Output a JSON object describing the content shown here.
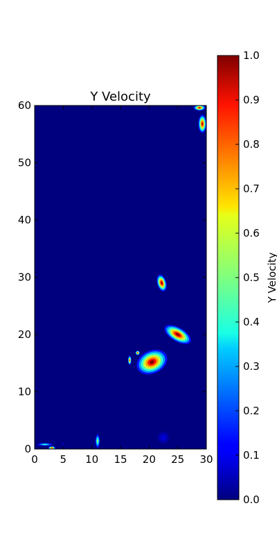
{
  "chart_data": {
    "type": "heatmap",
    "title": "Y Velocity",
    "xlim": [
      0,
      30
    ],
    "ylim": [
      0,
      60
    ],
    "x_ticks": [
      "0",
      "5",
      "10",
      "15",
      "20",
      "25",
      "30"
    ],
    "y_ticks": [
      "0",
      "10",
      "20",
      "30",
      "40",
      "50",
      "60"
    ],
    "colorbar": {
      "label": "Y Velocity",
      "range": [
        0.0,
        1.0
      ],
      "ticks": [
        "0.0",
        "0.1",
        "0.2",
        "0.3",
        "0.4",
        "0.5",
        "0.6",
        "0.7",
        "0.8",
        "0.9",
        "1.0"
      ],
      "colormap": "jet"
    },
    "background_value": 0.0,
    "features": [
      {
        "x": 22.2,
        "y": 29.0,
        "rx": 0.8,
        "ry": 1.5,
        "angle": -15,
        "peak": 1.0
      },
      {
        "x": 25.0,
        "y": 20.0,
        "rx": 2.6,
        "ry": 1.2,
        "angle": 30,
        "peak": 1.0
      },
      {
        "x": 20.5,
        "y": 15.2,
        "rx": 2.8,
        "ry": 2.0,
        "angle": -25,
        "peak": 1.0
      },
      {
        "x": 16.6,
        "y": 15.5,
        "rx": 0.3,
        "ry": 0.8,
        "angle": 0,
        "peak": 0.85
      },
      {
        "x": 18.0,
        "y": 16.8,
        "rx": 0.4,
        "ry": 0.4,
        "angle": 0,
        "peak": 0.9
      },
      {
        "x": 29.3,
        "y": 56.8,
        "rx": 0.7,
        "ry": 1.6,
        "angle": 0,
        "peak": 0.95
      },
      {
        "x": 28.8,
        "y": 59.6,
        "rx": 1.0,
        "ry": 0.5,
        "angle": 0,
        "peak": 0.95
      },
      {
        "x": 11.0,
        "y": 1.4,
        "rx": 0.4,
        "ry": 1.2,
        "angle": 0,
        "peak": 0.55
      },
      {
        "x": 1.8,
        "y": 0.8,
        "rx": 1.4,
        "ry": 0.25,
        "angle": 0,
        "peak": 0.45
      },
      {
        "x": 3.0,
        "y": 0.2,
        "rx": 0.6,
        "ry": 0.3,
        "angle": 0,
        "peak": 0.9
      },
      {
        "x": 22.5,
        "y": 2.0,
        "rx": 1.1,
        "ry": 1.1,
        "angle": 0,
        "peak": 0.1
      },
      {
        "x": 5.0,
        "y": 0.6,
        "rx": 0.15,
        "ry": 0.6,
        "angle": 0,
        "peak": 0.12
      }
    ]
  }
}
